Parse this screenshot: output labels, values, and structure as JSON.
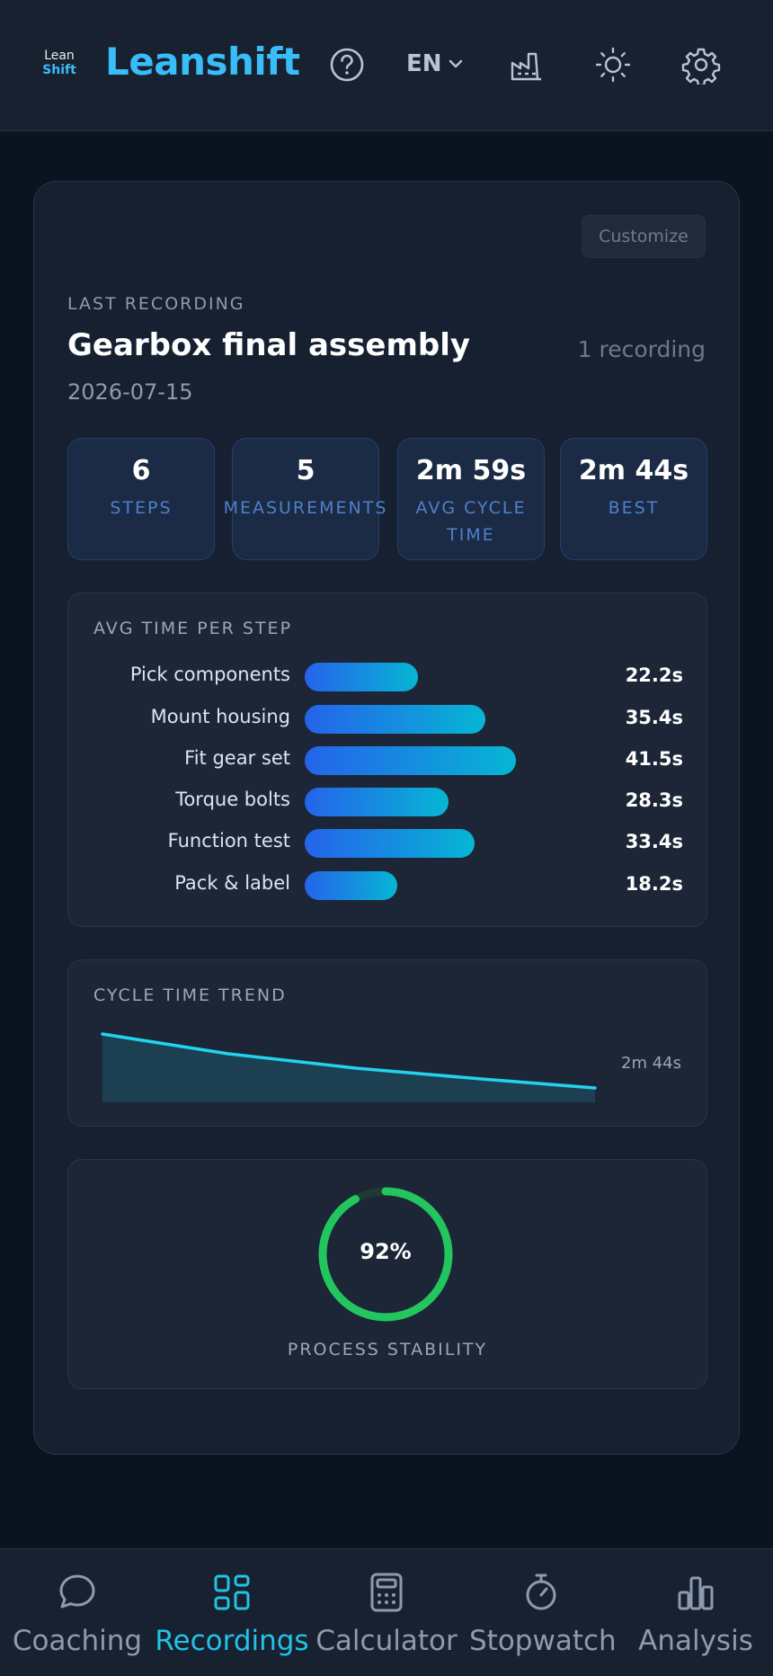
{
  "header": {
    "logo_line1": "Lean",
    "logo_line2": "Shift",
    "brand": "Leanshift",
    "language": "EN",
    "icons": [
      "help-icon",
      "chevron-down-icon",
      "factory-icon",
      "sun-icon",
      "gear-icon"
    ]
  },
  "card": {
    "customize_label": "Customize",
    "eyebrow": "LAST RECORDING",
    "title": "Gearbox final assembly",
    "count": "1 recording",
    "date": "2026-07-15",
    "stats": [
      {
        "value": "6",
        "label": "STEPS"
      },
      {
        "value": "5",
        "label": "MEASUREMENTS"
      },
      {
        "value": "2m 59s",
        "label": "AVG CYCLE TIME"
      },
      {
        "value": "2m 44s",
        "label": "BEST"
      }
    ]
  },
  "steps_panel": {
    "title": "AVG TIME PER STEP",
    "max_seconds": 60,
    "steps": [
      {
        "label": "Pick components",
        "seconds": 22.2,
        "value_text": "22.2s"
      },
      {
        "label": "Mount housing",
        "seconds": 35.4,
        "value_text": "35.4s"
      },
      {
        "label": "Fit gear set",
        "seconds": 41.5,
        "value_text": "41.5s"
      },
      {
        "label": "Torque bolts",
        "seconds": 28.3,
        "value_text": "28.3s"
      },
      {
        "label": "Function test",
        "seconds": 33.4,
        "value_text": "33.4s"
      },
      {
        "label": "Pack & label",
        "seconds": 18.2,
        "value_text": "18.2s"
      }
    ]
  },
  "trend_panel": {
    "title": "CYCLE TIME TREND",
    "end_label": "2m 44s"
  },
  "stability_panel": {
    "value_text": "92%",
    "value": 0.92,
    "label": "PROCESS STABILITY",
    "color": "#22c55e"
  },
  "nav": {
    "items": [
      {
        "label": "Coaching",
        "icon": "chat-bubble-icon",
        "active": false
      },
      {
        "label": "Recordings",
        "icon": "grid-icon",
        "active": true
      },
      {
        "label": "Calculator",
        "icon": "calculator-icon",
        "active": false
      },
      {
        "label": "Stopwatch",
        "icon": "stopwatch-icon",
        "active": false
      },
      {
        "label": "Analysis",
        "icon": "bar-chart-icon",
        "active": false
      }
    ]
  },
  "colors": {
    "accent": "#38bdf8",
    "nav_active": "#22c3e6",
    "bar_start": "#2563eb",
    "bar_end": "#06b6d4",
    "trend_line": "#22d3ee"
  }
}
